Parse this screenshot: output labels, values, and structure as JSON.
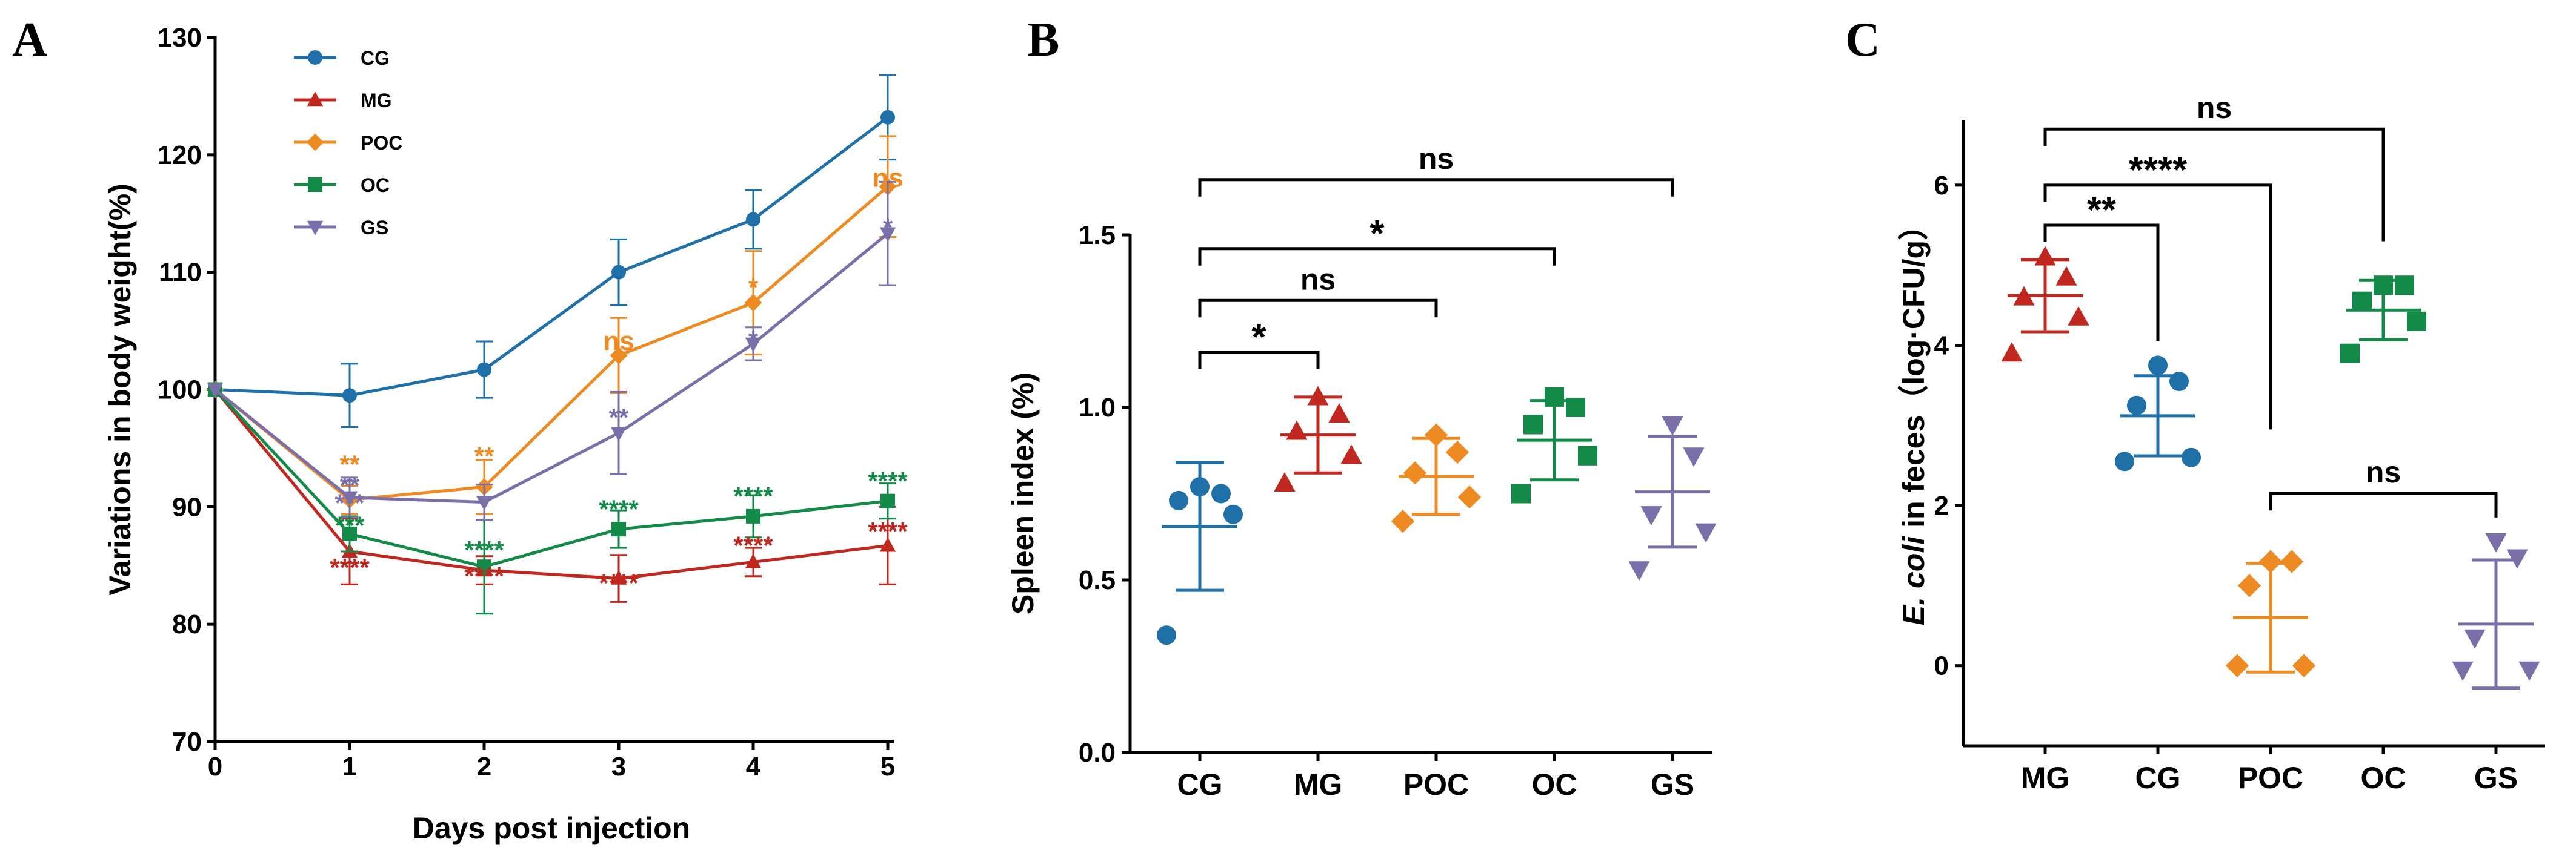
{
  "colors": {
    "CG": "#1f6fa8",
    "MG": "#c0281f",
    "POC": "#ee8a22",
    "OC": "#138a48",
    "GS": "#7a6fa8",
    "axis": "#000000"
  },
  "chart_data": [
    {
      "panel": "A",
      "type": "line",
      "xlabel": "Days post injection",
      "ylabel": "Variations in body weight(%)",
      "x": [
        0,
        1,
        2,
        3,
        4,
        5
      ],
      "xlim": [
        0,
        5
      ],
      "ylim": [
        70,
        130
      ],
      "yticks": [
        70,
        80,
        90,
        100,
        110,
        120,
        130
      ],
      "legend_position": "top-left",
      "series": [
        {
          "name": "CG",
          "marker": "circle",
          "values": [
            100,
            99.5,
            101.7,
            110,
            114.5,
            123.2
          ],
          "errors": [
            0,
            2.7,
            2.4,
            2.8,
            2.5,
            3.6
          ]
        },
        {
          "name": "MG",
          "marker": "triangle",
          "values": [
            100,
            86.2,
            84.6,
            83.9,
            85.3,
            86.7
          ],
          "errors": [
            0,
            2.8,
            1.2,
            2.0,
            1.2,
            3.3
          ]
        },
        {
          "name": "POC",
          "marker": "diamond",
          "values": [
            100,
            90.6,
            91.7,
            102.9,
            107.4,
            117.3
          ],
          "errors": [
            0,
            1.2,
            2.3,
            3.2,
            4.4,
            4.3
          ]
        },
        {
          "name": "OC",
          "marker": "square",
          "values": [
            100,
            87.7,
            84.9,
            88.1,
            89.2,
            90.5
          ],
          "errors": [
            0,
            1.5,
            4.0,
            1.6,
            1.8,
            1.5
          ]
        },
        {
          "name": "GS",
          "marker": "triangle-down",
          "values": [
            100,
            90.8,
            90.4,
            96.3,
            103.9,
            113.3
          ],
          "errors": [
            0,
            1.7,
            1.5,
            3.5,
            1.4,
            4.4
          ]
        }
      ],
      "annotations": [
        {
          "text": "**",
          "group": "POC",
          "day": 1,
          "y": 93.7
        },
        {
          "text": "**",
          "group": "GS",
          "day": 1,
          "y": 91.9
        },
        {
          "text": "***",
          "group": "GS",
          "day": 1,
          "y": 90.4
        },
        {
          "text": "***",
          "group": "OC",
          "day": 1,
          "y": 88.5
        },
        {
          "text": "****",
          "group": "MG",
          "day": 1,
          "y": 84.9
        },
        {
          "text": "**",
          "group": "POC",
          "day": 2,
          "y": 94.4
        },
        {
          "text": "****",
          "group": "OC",
          "day": 2,
          "y": 86.4
        },
        {
          "text": "****",
          "group": "MG",
          "day": 2,
          "y": 84.2
        },
        {
          "text": "ns",
          "group": "POC",
          "day": 3,
          "y": 104.2
        },
        {
          "text": "**",
          "group": "GS",
          "day": 3,
          "y": 97.7
        },
        {
          "text": "****",
          "group": "OC",
          "day": 3,
          "y": 89.9
        },
        {
          "text": "****",
          "group": "MG",
          "day": 3,
          "y": 83.6
        },
        {
          "text": "*",
          "group": "POC",
          "day": 4,
          "y": 108.8
        },
        {
          "text": "*",
          "group": "GS",
          "day": 4,
          "y": 104.3
        },
        {
          "text": "****",
          "group": "OC",
          "day": 4,
          "y": 91.0
        },
        {
          "text": "****",
          "group": "MG",
          "day": 4,
          "y": 86.8
        },
        {
          "text": "ns",
          "group": "POC",
          "day": 5,
          "y": 118.1
        },
        {
          "text": "*",
          "group": "GS",
          "day": 5,
          "y": 113.9
        },
        {
          "text": "****",
          "group": "OC",
          "day": 5,
          "y": 92.3
        },
        {
          "text": "****",
          "group": "MG",
          "day": 5,
          "y": 88.0
        }
      ]
    },
    {
      "panel": "B",
      "type": "scatter",
      "ylabel": "Spleen index (%)",
      "categories": [
        "CG",
        "MG",
        "POC",
        "OC",
        "GS"
      ],
      "ylim": [
        0,
        1.5
      ],
      "yticks": [
        "0.0",
        "0.5",
        "1.0",
        "1.5"
      ],
      "groups": [
        {
          "name": "CG",
          "marker": "circle",
          "points": [
            0.34,
            0.69,
            0.73,
            0.75,
            0.77
          ],
          "mean": 0.655,
          "sd": 0.185
        },
        {
          "name": "MG",
          "marker": "triangle",
          "points": [
            0.78,
            0.86,
            0.93,
            0.98,
            1.03
          ],
          "mean": 0.92,
          "sd": 0.11
        },
        {
          "name": "POC",
          "marker": "diamond",
          "points": [
            0.67,
            0.74,
            0.81,
            0.87,
            0.92
          ],
          "mean": 0.8,
          "sd": 0.11
        },
        {
          "name": "OC",
          "marker": "square",
          "points": [
            0.75,
            0.86,
            0.95,
            1.0,
            1.03
          ],
          "mean": 0.905,
          "sd": 0.115
        },
        {
          "name": "GS",
          "marker": "triangle-down",
          "points": [
            0.53,
            0.64,
            0.69,
            0.86,
            0.95
          ],
          "mean": 0.755,
          "sd": 0.16
        }
      ],
      "comparisons": [
        {
          "from": "CG",
          "to": "MG",
          "label": "*",
          "level": 1.16
        },
        {
          "from": "CG",
          "to": "POC",
          "label": "ns",
          "level": 1.31
        },
        {
          "from": "CG",
          "to": "OC",
          "label": "*",
          "level": 1.46
        },
        {
          "from": "CG",
          "to": "GS",
          "label": "ns",
          "level": 1.66
        }
      ]
    },
    {
      "panel": "C",
      "type": "scatter",
      "ylabel_parts": [
        "E. coli",
        " in feces（log·CFU/g）"
      ],
      "categories": [
        "MG",
        "CG",
        "POC",
        "OC",
        "GS"
      ],
      "ylim": [
        -1,
        6.8
      ],
      "yticks": [
        0,
        2,
        4,
        6
      ],
      "groups": [
        {
          "name": "MG",
          "marker": "triangle",
          "points": [
            3.9,
            4.35,
            4.6,
            4.85,
            5.1
          ],
          "mean": 4.62,
          "sd": 0.45
        },
        {
          "name": "CG",
          "marker": "circle",
          "points": [
            2.55,
            2.6,
            3.25,
            3.55,
            3.75
          ],
          "mean": 3.12,
          "sd": 0.5
        },
        {
          "name": "POC",
          "marker": "diamond",
          "points": [
            0.0,
            0.0,
            1.0,
            1.3,
            1.3
          ],
          "mean": 0.6,
          "sd": 0.68
        },
        {
          "name": "OC",
          "marker": "square",
          "points": [
            3.9,
            4.3,
            4.55,
            4.75,
            4.75
          ],
          "mean": 4.44,
          "sd": 0.37
        },
        {
          "name": "GS",
          "marker": "triangle-down",
          "points": [
            -0.05,
            -0.05,
            0.35,
            1.35,
            1.55
          ],
          "mean": 0.52,
          "sd": 0.8
        }
      ],
      "comparisons": [
        {
          "from": "MG",
          "to": "CG",
          "label": "**",
          "level": 5.5,
          "drop_to": 4.05
        },
        {
          "from": "MG",
          "to": "POC",
          "label": "****",
          "level": 6.0,
          "drop_to": 2.95
        },
        {
          "from": "MG",
          "to": "OC",
          "label": "ns",
          "level": 6.7,
          "drop_to": 5.3
        },
        {
          "from": "POC",
          "to": "GS",
          "label": "ns",
          "level": 2.15,
          "drop_to": 1.85
        }
      ]
    }
  ],
  "panel_labels": [
    "A",
    "B",
    "C"
  ]
}
